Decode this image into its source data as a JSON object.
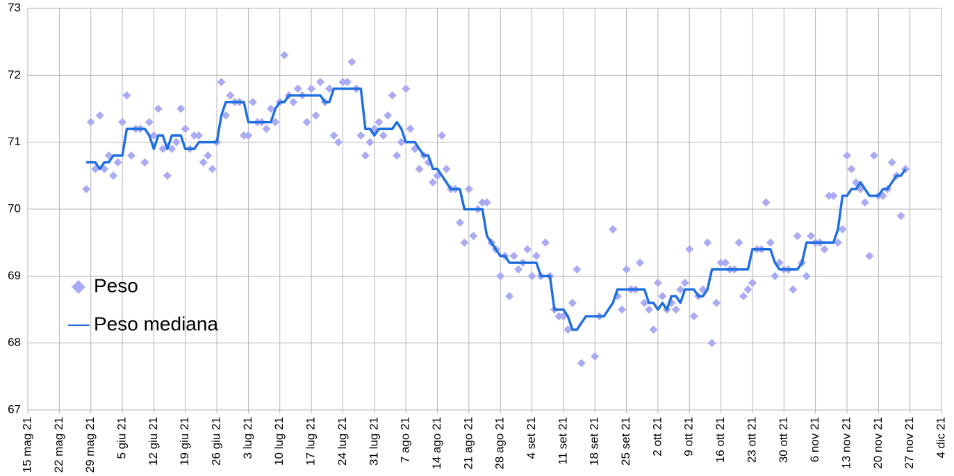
{
  "chart_data": {
    "type": "line",
    "legend": "left",
    "grid": true,
    "xlim": [
      "2021-05-15",
      "2021-12-04"
    ],
    "xticks": [
      {
        "value": "2021-05-15",
        "label": "15 mag 21"
      },
      {
        "value": "2021-05-22",
        "label": "22 mag 21"
      },
      {
        "value": "2021-05-29",
        "label": "29 mag 21"
      },
      {
        "value": "2021-06-05",
        "label": "5 giu 21"
      },
      {
        "value": "2021-06-12",
        "label": "12 giu 21"
      },
      {
        "value": "2021-06-19",
        "label": "19 giu 21"
      },
      {
        "value": "2021-06-26",
        "label": "26 giu 21"
      },
      {
        "value": "2021-07-03",
        "label": "3 lug 21"
      },
      {
        "value": "2021-07-10",
        "label": "10 lug 21"
      },
      {
        "value": "2021-07-17",
        "label": "17 lug 21"
      },
      {
        "value": "2021-07-24",
        "label": "24 lug 21"
      },
      {
        "value": "2021-07-31",
        "label": "31 lug 21"
      },
      {
        "value": "2021-08-07",
        "label": "7 ago 21"
      },
      {
        "value": "2021-08-14",
        "label": "14 ago 21"
      },
      {
        "value": "2021-08-21",
        "label": "21 ago 21"
      },
      {
        "value": "2021-08-28",
        "label": "28 ago 21"
      },
      {
        "value": "2021-09-04",
        "label": "4 set 21"
      },
      {
        "value": "2021-09-11",
        "label": "11 set 21"
      },
      {
        "value": "2021-09-18",
        "label": "18 set 21"
      },
      {
        "value": "2021-09-25",
        "label": "25 set 21"
      },
      {
        "value": "2021-10-02",
        "label": "2 ott 21"
      },
      {
        "value": "2021-10-09",
        "label": "9 ott 21"
      },
      {
        "value": "2021-10-16",
        "label": "16 ott 21"
      },
      {
        "value": "2021-10-23",
        "label": "23 ott 21"
      },
      {
        "value": "2021-10-30",
        "label": "30 ott 21"
      },
      {
        "value": "2021-11-06",
        "label": "6 nov 21"
      },
      {
        "value": "2021-11-13",
        "label": "13 nov 21"
      },
      {
        "value": "2021-11-20",
        "label": "20 nov 21"
      },
      {
        "value": "2021-11-27",
        "label": "27 nov 21"
      },
      {
        "value": "2021-12-04",
        "label": "4 dic 21"
      }
    ],
    "ylim": [
      67,
      73
    ],
    "yticks": [
      67,
      68,
      69,
      70,
      71,
      72,
      73
    ],
    "series": [
      {
        "name": "Peso",
        "type": "scatter",
        "color": "#aaaaf5",
        "x": [
          "2021-05-28",
          "2021-05-29",
          "2021-05-30",
          "2021-05-31",
          "2021-06-01",
          "2021-06-02",
          "2021-06-03",
          "2021-06-04",
          "2021-06-05",
          "2021-06-06",
          "2021-06-07",
          "2021-06-08",
          "2021-06-09",
          "2021-06-10",
          "2021-06-11",
          "2021-06-12",
          "2021-06-13",
          "2021-06-14",
          "2021-06-15",
          "2021-06-16",
          "2021-06-17",
          "2021-06-18",
          "2021-06-19",
          "2021-06-20",
          "2021-06-21",
          "2021-06-22",
          "2021-06-23",
          "2021-06-24",
          "2021-06-25",
          "2021-06-26",
          "2021-06-27",
          "2021-06-28",
          "2021-06-29",
          "2021-06-30",
          "2021-07-01",
          "2021-07-02",
          "2021-07-03",
          "2021-07-04",
          "2021-07-05",
          "2021-07-06",
          "2021-07-07",
          "2021-07-08",
          "2021-07-09",
          "2021-07-10",
          "2021-07-11",
          "2021-07-12",
          "2021-07-13",
          "2021-07-14",
          "2021-07-15",
          "2021-07-16",
          "2021-07-17",
          "2021-07-18",
          "2021-07-19",
          "2021-07-20",
          "2021-07-21",
          "2021-07-22",
          "2021-07-23",
          "2021-07-24",
          "2021-07-25",
          "2021-07-26",
          "2021-07-27",
          "2021-07-28",
          "2021-07-29",
          "2021-07-30",
          "2021-07-31",
          "2021-08-01",
          "2021-08-02",
          "2021-08-03",
          "2021-08-04",
          "2021-08-05",
          "2021-08-06",
          "2021-08-07",
          "2021-08-08",
          "2021-08-09",
          "2021-08-10",
          "2021-08-11",
          "2021-08-12",
          "2021-08-13",
          "2021-08-14",
          "2021-08-15",
          "2021-08-16",
          "2021-08-17",
          "2021-08-18",
          "2021-08-19",
          "2021-08-20",
          "2021-08-21",
          "2021-08-22",
          "2021-08-23",
          "2021-08-24",
          "2021-08-25",
          "2021-08-26",
          "2021-08-27",
          "2021-08-28",
          "2021-08-29",
          "2021-08-30",
          "2021-08-31",
          "2021-09-01",
          "2021-09-02",
          "2021-09-03",
          "2021-09-04",
          "2021-09-05",
          "2021-09-06",
          "2021-09-07",
          "2021-09-08",
          "2021-09-09",
          "2021-09-10",
          "2021-09-11",
          "2021-09-12",
          "2021-09-13",
          "2021-09-14",
          "2021-09-15",
          "2021-09-18",
          "2021-09-19",
          "2021-09-22",
          "2021-09-23",
          "2021-09-24",
          "2021-09-25",
          "2021-09-26",
          "2021-09-27",
          "2021-09-28",
          "2021-09-29",
          "2021-09-30",
          "2021-10-01",
          "2021-10-02",
          "2021-10-03",
          "2021-10-04",
          "2021-10-05",
          "2021-10-06",
          "2021-10-07",
          "2021-10-08",
          "2021-10-09",
          "2021-10-10",
          "2021-10-11",
          "2021-10-12",
          "2021-10-13",
          "2021-10-14",
          "2021-10-15",
          "2021-10-16",
          "2021-10-17",
          "2021-10-18",
          "2021-10-19",
          "2021-10-20",
          "2021-10-21",
          "2021-10-22",
          "2021-10-23",
          "2021-10-24",
          "2021-10-25",
          "2021-10-26",
          "2021-10-27",
          "2021-10-28",
          "2021-10-29",
          "2021-10-30",
          "2021-10-31",
          "2021-11-01",
          "2021-11-02",
          "2021-11-03",
          "2021-11-04",
          "2021-11-05",
          "2021-11-06",
          "2021-11-07",
          "2021-11-08",
          "2021-11-09",
          "2021-11-10",
          "2021-11-11",
          "2021-11-12",
          "2021-11-13",
          "2021-11-14",
          "2021-11-15",
          "2021-11-16",
          "2021-11-17",
          "2021-11-18",
          "2021-11-19",
          "2021-11-20",
          "2021-11-21",
          "2021-11-22",
          "2021-11-23",
          "2021-11-24",
          "2021-11-25",
          "2021-11-26"
        ],
        "values": [
          70.3,
          71.3,
          70.6,
          71.4,
          70.6,
          70.8,
          70.5,
          70.7,
          71.3,
          71.7,
          70.8,
          71.2,
          71.2,
          70.7,
          71.3,
          71.1,
          71.5,
          70.9,
          70.5,
          70.9,
          71.0,
          71.5,
          71.2,
          70.9,
          71.1,
          71.1,
          70.7,
          70.8,
          70.6,
          71.0,
          71.9,
          71.4,
          71.7,
          71.6,
          71.6,
          71.1,
          71.1,
          71.6,
          71.3,
          71.3,
          71.2,
          71.5,
          71.3,
          71.6,
          72.3,
          71.7,
          71.6,
          71.8,
          71.7,
          71.3,
          71.8,
          71.4,
          71.9,
          71.6,
          71.8,
          71.1,
          71.0,
          71.9,
          71.9,
          72.2,
          71.8,
          71.1,
          70.8,
          71.0,
          71.2,
          71.3,
          71.1,
          71.4,
          71.7,
          70.8,
          71.0,
          71.8,
          71.2,
          70.9,
          70.6,
          70.8,
          70.7,
          70.4,
          70.5,
          71.1,
          70.6,
          70.3,
          70.3,
          69.8,
          69.5,
          70.3,
          69.6,
          70.0,
          70.1,
          70.1,
          69.5,
          69.4,
          69.0,
          69.3,
          68.7,
          69.3,
          69.1,
          69.2,
          69.4,
          69.0,
          69.3,
          69.0,
          69.5,
          69.0,
          68.5,
          68.4,
          68.4,
          68.2,
          68.6,
          69.1,
          67.7,
          67.8,
          68.4,
          69.7,
          68.7,
          68.5,
          69.1,
          68.8,
          68.8,
          69.2,
          68.6,
          68.5,
          68.2,
          68.9,
          68.7,
          68.5,
          68.6,
          68.5,
          68.8,
          68.9,
          69.4,
          68.4,
          68.7,
          68.8,
          69.5,
          68.0,
          68.6,
          69.2,
          69.2,
          69.1,
          69.1,
          69.5,
          68.7,
          68.8,
          68.9,
          69.4,
          69.4,
          70.1,
          69.5,
          69.0,
          69.2,
          69.1,
          69.1,
          68.8,
          69.6,
          69.2,
          69.0,
          69.6,
          69.5,
          69.5,
          69.4,
          70.2,
          70.2,
          69.5,
          69.7,
          70.8,
          70.6,
          70.4,
          70.3,
          70.1,
          69.3,
          70.8,
          70.2,
          70.2,
          70.3,
          70.7,
          70.5,
          69.9,
          70.6
        ]
      },
      {
        "name": "Peso mediana",
        "type": "line",
        "color": "#1f6fe0",
        "x": [
          "2021-05-28",
          "2021-05-29",
          "2021-05-30",
          "2021-05-31",
          "2021-06-01",
          "2021-06-02",
          "2021-06-03",
          "2021-06-04",
          "2021-06-05",
          "2021-06-06",
          "2021-06-07",
          "2021-06-08",
          "2021-06-09",
          "2021-06-10",
          "2021-06-11",
          "2021-06-12",
          "2021-06-13",
          "2021-06-14",
          "2021-06-15",
          "2021-06-16",
          "2021-06-17",
          "2021-06-18",
          "2021-06-19",
          "2021-06-20",
          "2021-06-21",
          "2021-06-22",
          "2021-06-23",
          "2021-06-24",
          "2021-06-25",
          "2021-06-26",
          "2021-06-27",
          "2021-06-28",
          "2021-06-29",
          "2021-06-30",
          "2021-07-01",
          "2021-07-02",
          "2021-07-03",
          "2021-07-04",
          "2021-07-05",
          "2021-07-06",
          "2021-07-07",
          "2021-07-08",
          "2021-07-09",
          "2021-07-10",
          "2021-07-11",
          "2021-07-12",
          "2021-07-13",
          "2021-07-14",
          "2021-07-15",
          "2021-07-16",
          "2021-07-17",
          "2021-07-18",
          "2021-07-19",
          "2021-07-20",
          "2021-07-21",
          "2021-07-22",
          "2021-07-23",
          "2021-07-24",
          "2021-07-25",
          "2021-07-26",
          "2021-07-27",
          "2021-07-28",
          "2021-07-29",
          "2021-07-30",
          "2021-07-31",
          "2021-08-01",
          "2021-08-02",
          "2021-08-03",
          "2021-08-04",
          "2021-08-05",
          "2021-08-06",
          "2021-08-07",
          "2021-08-08",
          "2021-08-09",
          "2021-08-10",
          "2021-08-11",
          "2021-08-12",
          "2021-08-13",
          "2021-08-14",
          "2021-08-15",
          "2021-08-16",
          "2021-08-17",
          "2021-08-18",
          "2021-08-19",
          "2021-08-20",
          "2021-08-21",
          "2021-08-22",
          "2021-08-23",
          "2021-08-24",
          "2021-08-25",
          "2021-08-26",
          "2021-08-27",
          "2021-08-28",
          "2021-08-29",
          "2021-08-30",
          "2021-08-31",
          "2021-09-01",
          "2021-09-02",
          "2021-09-03",
          "2021-09-04",
          "2021-09-05",
          "2021-09-06",
          "2021-09-07",
          "2021-09-08",
          "2021-09-09",
          "2021-09-10",
          "2021-09-11",
          "2021-09-12",
          "2021-09-13",
          "2021-09-14",
          "2021-09-15",
          "2021-09-16",
          "2021-09-17",
          "2021-09-18",
          "2021-09-19",
          "2021-09-20",
          "2021-09-21",
          "2021-09-22",
          "2021-09-23",
          "2021-09-24",
          "2021-09-25",
          "2021-09-26",
          "2021-09-27",
          "2021-09-28",
          "2021-09-29",
          "2021-09-30",
          "2021-10-01",
          "2021-10-02",
          "2021-10-03",
          "2021-10-04",
          "2021-10-05",
          "2021-10-06",
          "2021-10-07",
          "2021-10-08",
          "2021-10-09",
          "2021-10-10",
          "2021-10-11",
          "2021-10-12",
          "2021-10-13",
          "2021-10-14",
          "2021-10-15",
          "2021-10-16",
          "2021-10-17",
          "2021-10-18",
          "2021-10-19",
          "2021-10-20",
          "2021-10-21",
          "2021-10-22",
          "2021-10-23",
          "2021-10-24",
          "2021-10-25",
          "2021-10-26",
          "2021-10-27",
          "2021-10-28",
          "2021-10-29",
          "2021-10-30",
          "2021-10-31",
          "2021-11-01",
          "2021-11-02",
          "2021-11-03",
          "2021-11-04",
          "2021-11-05",
          "2021-11-06",
          "2021-11-07",
          "2021-11-08",
          "2021-11-09",
          "2021-11-10",
          "2021-11-11",
          "2021-11-12",
          "2021-11-13",
          "2021-11-14",
          "2021-11-15",
          "2021-11-16",
          "2021-11-17",
          "2021-11-18",
          "2021-11-19",
          "2021-11-20",
          "2021-11-21",
          "2021-11-22",
          "2021-11-23",
          "2021-11-24",
          "2021-11-25",
          "2021-11-26"
        ],
        "values": [
          70.7,
          70.7,
          70.7,
          70.6,
          70.7,
          70.7,
          70.8,
          70.8,
          70.8,
          71.2,
          71.2,
          71.2,
          71.2,
          71.2,
          71.1,
          70.9,
          71.1,
          71.1,
          70.9,
          71.1,
          71.1,
          71.1,
          70.9,
          70.9,
          70.9,
          71.0,
          71.0,
          71.0,
          71.0,
          71.0,
          71.4,
          71.6,
          71.6,
          71.6,
          71.6,
          71.6,
          71.3,
          71.3,
          71.3,
          71.3,
          71.3,
          71.3,
          71.5,
          71.6,
          71.6,
          71.7,
          71.7,
          71.7,
          71.7,
          71.7,
          71.7,
          71.7,
          71.7,
          71.6,
          71.6,
          71.8,
          71.8,
          71.8,
          71.8,
          71.8,
          71.8,
          71.8,
          71.2,
          71.2,
          71.1,
          71.2,
          71.2,
          71.2,
          71.2,
          71.3,
          71.2,
          71.0,
          71.0,
          71.0,
          70.9,
          70.8,
          70.8,
          70.6,
          70.6,
          70.5,
          70.4,
          70.3,
          70.3,
          70.3,
          70.0,
          70.0,
          70.0,
          70.0,
          70.0,
          69.6,
          69.5,
          69.4,
          69.3,
          69.3,
          69.2,
          69.2,
          69.2,
          69.2,
          69.2,
          69.2,
          69.2,
          69.0,
          69.0,
          69.0,
          68.5,
          68.5,
          68.5,
          68.4,
          68.2,
          68.2,
          68.3,
          68.4,
          68.4,
          68.4,
          68.4,
          68.4,
          68.5,
          68.6,
          68.8,
          68.8,
          68.8,
          68.8,
          68.8,
          68.8,
          68.8,
          68.6,
          68.6,
          68.5,
          68.6,
          68.5,
          68.7,
          68.7,
          68.6,
          68.8,
          68.8,
          68.8,
          68.7,
          68.7,
          68.8,
          69.1,
          69.1,
          69.1,
          69.1,
          69.1,
          69.1,
          69.1,
          69.1,
          69.1,
          69.4,
          69.4,
          69.4,
          69.4,
          69.4,
          69.2,
          69.1,
          69.1,
          69.1,
          69.1,
          69.1,
          69.2,
          69.5,
          69.5,
          69.5,
          69.5,
          69.5,
          69.5,
          69.5,
          69.7,
          70.2,
          70.2,
          70.3,
          70.3,
          70.4,
          70.3,
          70.2,
          70.2,
          70.2,
          70.3,
          70.3,
          70.4,
          70.5,
          70.5,
          70.6
        ]
      }
    ]
  }
}
